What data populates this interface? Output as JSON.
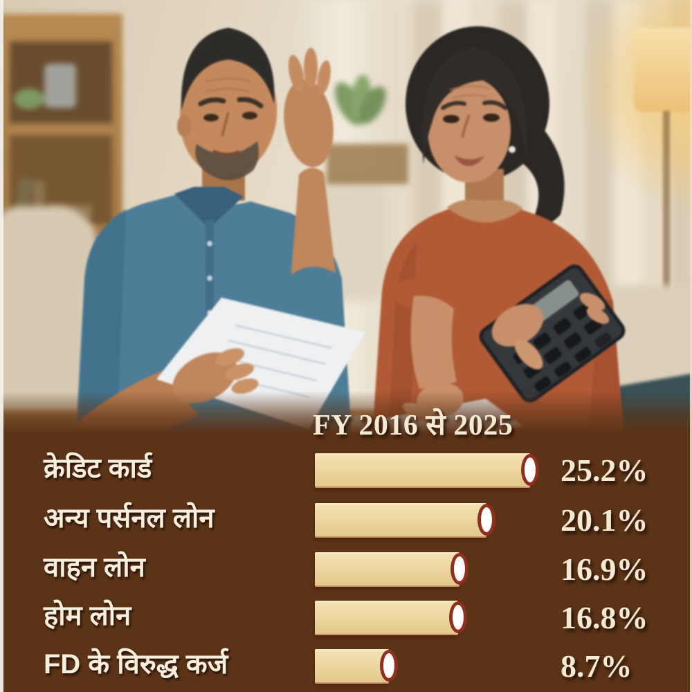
{
  "chart_data": {
    "type": "bar",
    "orientation": "horizontal",
    "title": "FY 2016 से 2025",
    "categories": [
      "क्रेडिट कार्ड",
      "अन्य पर्सनल लोन",
      "वाहन लोन",
      "होम लोन",
      "FD के विरुद्ध कर्ज"
    ],
    "values": [
      25.2,
      20.1,
      16.9,
      16.8,
      8.7
    ],
    "value_labels": [
      "25.2%",
      "20.1%",
      "16.9%",
      "16.8%",
      "8.7%"
    ],
    "unit": "%",
    "xlim": [
      0,
      26
    ],
    "grid": false,
    "legend": "none",
    "value_label_position": "right-of-bar"
  },
  "palette": {
    "panel_brown": "#5b3317",
    "bar_fill": "#eed8a2",
    "bar_fill_dark": "#e2c88a",
    "bar_cap_fill": "#ffffff",
    "bar_cap_border": "#8e2f1f",
    "text_cream": "#f4ead4",
    "label_white": "#f7efdd"
  }
}
